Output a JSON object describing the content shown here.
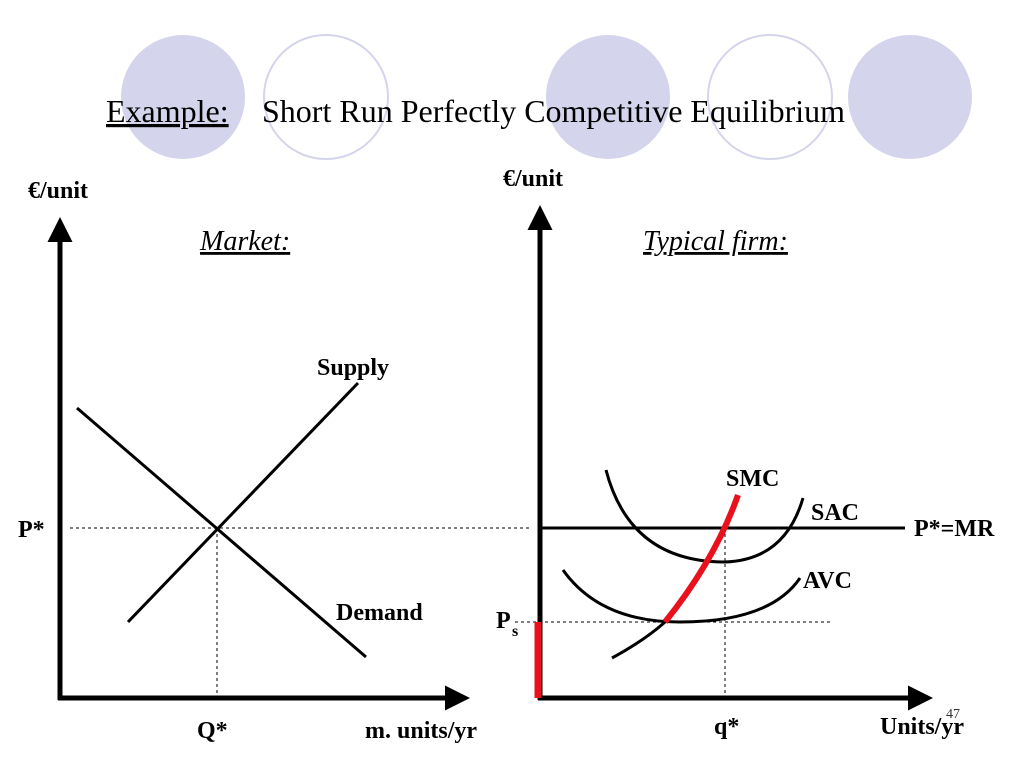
{
  "header": {
    "prefix": "Example:",
    "title": "Short Run Perfectly Competitive Equilibrium"
  },
  "market": {
    "y_axis": "€/unit",
    "heading": "Market:",
    "supply": "Supply",
    "demand": "Demand",
    "price": "P*",
    "quantity": "Q*",
    "x_axis": "m. units/yr"
  },
  "firm": {
    "y_axis": "€/unit",
    "heading": "Typical firm:",
    "smc": "SMC",
    "sac": "SAC",
    "avc": "AVC",
    "price_line": "P*=MR",
    "shutdown_price": {
      "main": "P",
      "sub": "s"
    },
    "quantity": "q*",
    "x_axis": "Units/yr"
  },
  "slide_number": "47"
}
